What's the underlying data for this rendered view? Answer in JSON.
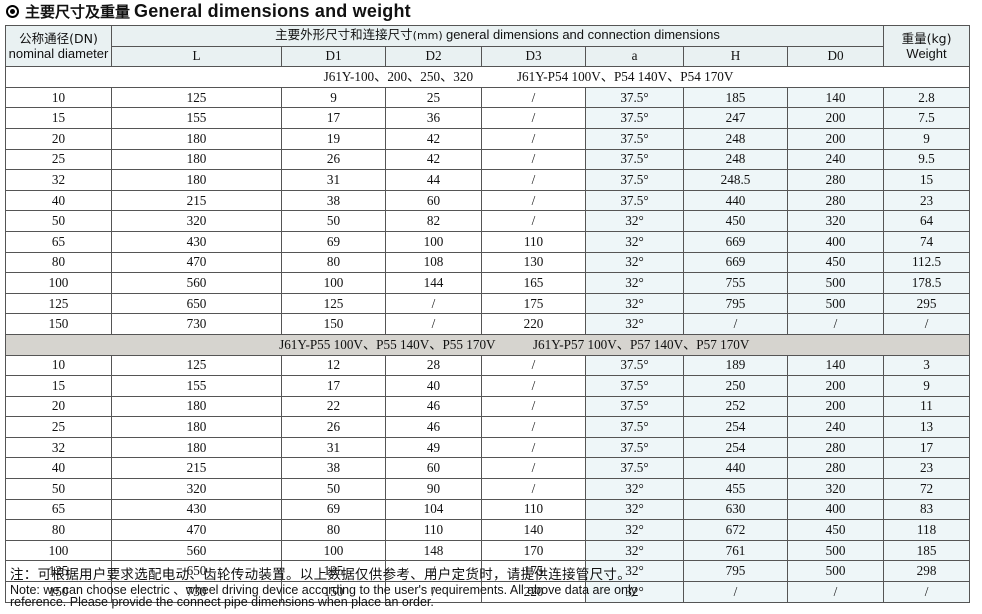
{
  "title": {
    "cn": "主要尺寸及重量",
    "en": "General dimensions and weight"
  },
  "header": {
    "dn_cn": "公称通径(DN)",
    "dn_en": "nominal diameter",
    "dims_cn": "主要外形尺寸和连接尺寸",
    "dims_unit": "(mm)",
    "dims_en": "general dimensions and connection dimensions",
    "weight_cn": "重量(kg)",
    "weight_en": "Weight",
    "columns": [
      "L",
      "D1",
      "D2",
      "D3",
      "a",
      "H",
      "D0"
    ]
  },
  "group1": {
    "label_left": "J61Y-100、200、250、320",
    "label_right": "J61Y-P54  100V、P54  140V、P54  170V",
    "rows": [
      {
        "dn": "10",
        "L": "125",
        "D1": "9",
        "D2": "25",
        "D3": "/",
        "a": "37.5°",
        "H": "185",
        "D0": "140",
        "w": "2.8"
      },
      {
        "dn": "15",
        "L": "155",
        "D1": "17",
        "D2": "36",
        "D3": "/",
        "a": "37.5°",
        "H": "247",
        "D0": "200",
        "w": "7.5"
      },
      {
        "dn": "20",
        "L": "180",
        "D1": "19",
        "D2": "42",
        "D3": "/",
        "a": "37.5°",
        "H": "248",
        "D0": "200",
        "w": "9"
      },
      {
        "dn": "25",
        "L": "180",
        "D1": "26",
        "D2": "42",
        "D3": "/",
        "a": "37.5°",
        "H": "248",
        "D0": "240",
        "w": "9.5"
      },
      {
        "dn": "32",
        "L": "180",
        "D1": "31",
        "D2": "44",
        "D3": "/",
        "a": "37.5°",
        "H": "248.5",
        "D0": "280",
        "w": "15"
      },
      {
        "dn": "40",
        "L": "215",
        "D1": "38",
        "D2": "60",
        "D3": "/",
        "a": "37.5°",
        "H": "440",
        "D0": "280",
        "w": "23"
      },
      {
        "dn": "50",
        "L": "320",
        "D1": "50",
        "D2": "82",
        "D3": "/",
        "a": "32°",
        "H": "450",
        "D0": "320",
        "w": "64"
      },
      {
        "dn": "65",
        "L": "430",
        "D1": "69",
        "D2": "100",
        "D3": "110",
        "a": "32°",
        "H": "669",
        "D0": "400",
        "w": "74"
      },
      {
        "dn": "80",
        "L": "470",
        "D1": "80",
        "D2": "108",
        "D3": "130",
        "a": "32°",
        "H": "669",
        "D0": "450",
        "w": "112.5"
      },
      {
        "dn": "100",
        "L": "560",
        "D1": "100",
        "D2": "144",
        "D3": "165",
        "a": "32°",
        "H": "755",
        "D0": "500",
        "w": "178.5"
      },
      {
        "dn": "125",
        "L": "650",
        "D1": "125",
        "D2": "/",
        "D3": "175",
        "a": "32°",
        "H": "795",
        "D0": "500",
        "w": "295"
      },
      {
        "dn": "150",
        "L": "730",
        "D1": "150",
        "D2": "/",
        "D3": "220",
        "a": "32°",
        "H": "/",
        "D0": "/",
        "w": "/"
      }
    ]
  },
  "group2": {
    "label_left": "J61Y-P55  100V、P55  140V、P55  170V",
    "label_right": "J61Y-P57  100V、P57 140V、P57 170V",
    "rows": [
      {
        "dn": "10",
        "L": "125",
        "D1": "12",
        "D2": "28",
        "D3": "/",
        "a": "37.5°",
        "H": "189",
        "D0": "140",
        "w": "3"
      },
      {
        "dn": "15",
        "L": "155",
        "D1": "17",
        "D2": "40",
        "D3": "/",
        "a": "37.5°",
        "H": "250",
        "D0": "200",
        "w": "9"
      },
      {
        "dn": "20",
        "L": "180",
        "D1": "22",
        "D2": "46",
        "D3": "/",
        "a": "37.5°",
        "H": "252",
        "D0": "200",
        "w": "11"
      },
      {
        "dn": "25",
        "L": "180",
        "D1": "26",
        "D2": "46",
        "D3": "/",
        "a": "37.5°",
        "H": "254",
        "D0": "240",
        "w": "13"
      },
      {
        "dn": "32",
        "L": "180",
        "D1": "31",
        "D2": "49",
        "D3": "/",
        "a": "37.5°",
        "H": "254",
        "D0": "280",
        "w": "17"
      },
      {
        "dn": "40",
        "L": "215",
        "D1": "38",
        "D2": "60",
        "D3": "/",
        "a": "37.5°",
        "H": "440",
        "D0": "280",
        "w": "23"
      },
      {
        "dn": "50",
        "L": "320",
        "D1": "50",
        "D2": "90",
        "D3": "/",
        "a": "32°",
        "H": "455",
        "D0": "320",
        "w": "72"
      },
      {
        "dn": "65",
        "L": "430",
        "D1": "69",
        "D2": "104",
        "D3": "110",
        "a": "32°",
        "H": "630",
        "D0": "400",
        "w": "83"
      },
      {
        "dn": "80",
        "L": "470",
        "D1": "80",
        "D2": "110",
        "D3": "140",
        "a": "32°",
        "H": "672",
        "D0": "450",
        "w": "118"
      },
      {
        "dn": "100",
        "L": "560",
        "D1": "100",
        "D2": "148",
        "D3": "170",
        "a": "32°",
        "H": "761",
        "D0": "500",
        "w": "185"
      },
      {
        "dn": "125",
        "L": "650",
        "D1": "125",
        "D2": "/",
        "D3": "175",
        "a": "32°",
        "H": "795",
        "D0": "500",
        "w": "298"
      },
      {
        "dn": "150",
        "L": "730",
        "D1": "150",
        "D2": "/",
        "D3": "220",
        "a": "32°",
        "H": "/",
        "D0": "/",
        "w": "/"
      }
    ]
  },
  "notes": {
    "cn": "注：可根据用户要求选配电动、齿轮传动装置。以上数据仅供参考、用户定货时，请提供连接管尺寸。",
    "en_line1": "Note: we can choose electric 、wheel driving device according to the user's requirements. All above data are only",
    "en_line2": "reference.  Please provide the connect pipe dimensions when place an order."
  }
}
